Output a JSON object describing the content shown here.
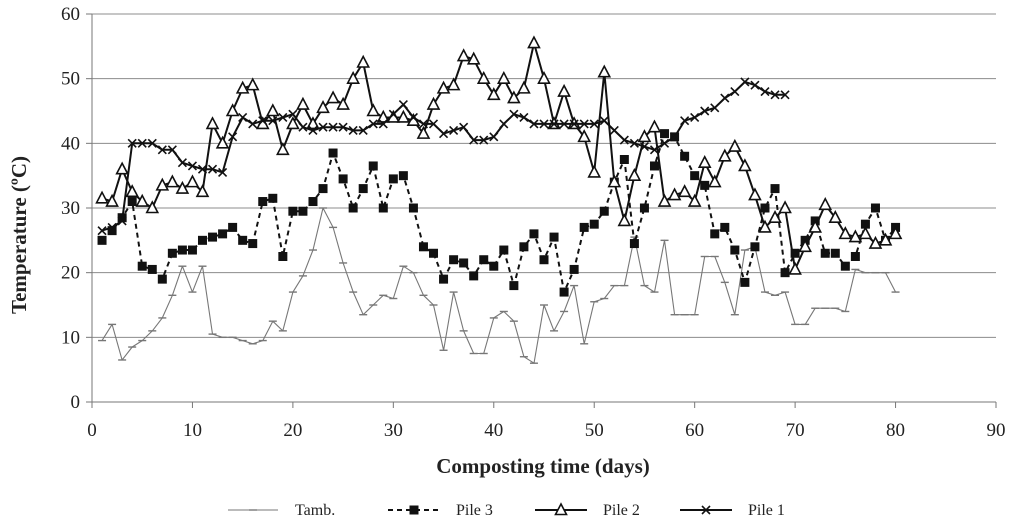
{
  "chart_data": {
    "type": "line",
    "title": "",
    "xlabel": "Composting time (days)",
    "ylabel": "Temperature (ºC)",
    "xlim": [
      0,
      90
    ],
    "ylim": [
      0,
      60
    ],
    "xticks": [
      0,
      10,
      20,
      30,
      40,
      50,
      60,
      70,
      80,
      90
    ],
    "yticks": [
      0,
      10,
      20,
      30,
      40,
      50,
      60
    ],
    "grid": "horizontal",
    "legend_position": "bottom",
    "series": [
      {
        "name": "Tamb.",
        "line_style": "solid-thin",
        "marker": "dash",
        "color": "#777777",
        "x": [
          1,
          2,
          3,
          4,
          5,
          6,
          7,
          8,
          9,
          10,
          11,
          12,
          13,
          14,
          15,
          16,
          17,
          18,
          19,
          20,
          21,
          22,
          23,
          24,
          25,
          26,
          27,
          28,
          29,
          30,
          31,
          32,
          33,
          34,
          35,
          36,
          37,
          38,
          39,
          40,
          41,
          42,
          43,
          44,
          45,
          46,
          47,
          48,
          49,
          50,
          51,
          52,
          53,
          54,
          55,
          56,
          57,
          58,
          59,
          60,
          61,
          62,
          63,
          64,
          65,
          66,
          67,
          68,
          69,
          70,
          71,
          72,
          73,
          74,
          75,
          76,
          77,
          78,
          79,
          80
        ],
        "y": [
          9.5,
          12,
          6.5,
          8.5,
          9.5,
          11,
          13,
          16.5,
          21,
          17,
          21,
          10.5,
          10,
          10,
          9.5,
          9,
          9.5,
          12.5,
          11,
          17,
          19.5,
          23.5,
          30,
          27,
          21.5,
          17,
          13.5,
          15,
          16.5,
          16,
          21,
          20,
          16.5,
          15,
          8,
          17,
          11,
          7.5,
          7.5,
          13,
          14,
          12.5,
          7,
          6,
          15,
          11,
          14,
          18,
          9,
          15.5,
          16,
          18,
          18,
          25.5,
          18,
          17,
          25,
          13.5,
          13.5,
          13.5,
          22.5,
          22.5,
          18.5,
          13.5,
          23.5,
          24,
          17,
          16.5,
          17,
          12,
          12,
          14.5,
          14.5,
          14.5,
          14,
          20.5,
          20,
          20,
          20,
          17
        ]
      },
      {
        "name": "Pile 3",
        "line_style": "dashed",
        "marker": "square",
        "color": "#111111",
        "x": [
          1,
          2,
          3,
          4,
          5,
          6,
          7,
          8,
          9,
          10,
          11,
          12,
          13,
          14,
          15,
          16,
          17,
          18,
          19,
          20,
          21,
          22,
          23,
          24,
          25,
          26,
          27,
          28,
          29,
          30,
          31,
          32,
          33,
          34,
          35,
          36,
          37,
          38,
          39,
          40,
          41,
          42,
          43,
          44,
          45,
          46,
          47,
          48,
          49,
          50,
          51,
          52,
          53,
          54,
          55,
          56,
          57,
          58,
          59,
          60,
          61,
          62,
          63,
          64,
          65,
          66,
          67,
          68,
          69,
          70,
          71,
          72,
          73,
          74,
          75,
          76,
          77,
          78,
          79,
          80
        ],
        "y": [
          25,
          26.5,
          28.5,
          31,
          21,
          20.5,
          19,
          23,
          23.5,
          23.5,
          25,
          25.5,
          26,
          27,
          25,
          24.5,
          31,
          31.5,
          22.5,
          29.5,
          29.5,
          31,
          33,
          38.5,
          34.5,
          30,
          33,
          36.5,
          30,
          34.5,
          35,
          30,
          24,
          23,
          19,
          22,
          21.5,
          19.5,
          22,
          21,
          23.5,
          18,
          24,
          26,
          22,
          25.5,
          17,
          20.5,
          27,
          27.5,
          29.5,
          34,
          37.5,
          24.5,
          30,
          36.5,
          41.5,
          41,
          38,
          35,
          33.5,
          26,
          27,
          23.5,
          18.5,
          24,
          30,
          33,
          20,
          23,
          25,
          28,
          23,
          23,
          21,
          22.5,
          27.5,
          30,
          25,
          27
        ]
      },
      {
        "name": "Pile 2",
        "line_style": "solid",
        "marker": "triangle",
        "color": "#111111",
        "x": [
          1,
          2,
          3,
          4,
          5,
          6,
          7,
          8,
          9,
          10,
          11,
          12,
          13,
          14,
          15,
          16,
          17,
          18,
          19,
          20,
          21,
          22,
          23,
          24,
          25,
          26,
          27,
          28,
          29,
          30,
          31,
          32,
          33,
          34,
          35,
          36,
          37,
          38,
          39,
          40,
          41,
          42,
          43,
          44,
          45,
          46,
          47,
          48,
          49,
          50,
          51,
          52,
          53,
          54,
          55,
          56,
          57,
          58,
          59,
          60,
          61,
          62,
          63,
          64,
          65,
          66,
          67,
          68,
          69,
          70,
          71,
          72,
          73,
          74,
          75,
          76,
          77,
          78,
          79,
          80
        ],
        "y": [
          31.5,
          31,
          36,
          32.5,
          31,
          30,
          33.5,
          34,
          33,
          34,
          32.5,
          43,
          40,
          45,
          48.5,
          49,
          43,
          45,
          39,
          43,
          46,
          43,
          45.5,
          47,
          46,
          50,
          52.5,
          45,
          44,
          44,
          44,
          43.5,
          41.5,
          46,
          48.5,
          49,
          53.5,
          53,
          50,
          47.5,
          50,
          47,
          48.5,
          55.5,
          50,
          43,
          48,
          43,
          41,
          35.5,
          51,
          34,
          28,
          35,
          41,
          42.5,
          31,
          32,
          32.5,
          31,
          37,
          34,
          38,
          39.5,
          36.5,
          32,
          27,
          28.5,
          30,
          20.5,
          24,
          27,
          30.5,
          28.5,
          26,
          25.5,
          26,
          24.5,
          25,
          26
        ]
      },
      {
        "name": "Pile 1",
        "line_style": "solid",
        "marker": "x",
        "color": "#111111",
        "x": [
          1,
          2,
          3,
          4,
          5,
          6,
          7,
          8,
          9,
          10,
          11,
          12,
          13,
          14,
          15,
          16,
          17,
          18,
          19,
          20,
          21,
          22,
          23,
          24,
          25,
          26,
          27,
          28,
          29,
          30,
          31,
          32,
          33,
          34,
          35,
          36,
          37,
          38,
          39,
          40,
          41,
          42,
          43,
          44,
          45,
          46,
          47,
          48,
          49,
          50,
          51,
          52,
          53,
          54,
          55,
          56,
          57,
          58,
          59,
          60,
          61,
          62,
          63,
          64,
          65,
          66,
          67,
          68,
          69
        ],
        "y": [
          26.5,
          27,
          28,
          40,
          40,
          40,
          39,
          39,
          37,
          36.5,
          36,
          36,
          35.5,
          41,
          44,
          43,
          43.5,
          43.5,
          44,
          44.5,
          42.5,
          42,
          42.5,
          42.5,
          42.5,
          42,
          42,
          43,
          43,
          44.5,
          46,
          44,
          43,
          43,
          41.5,
          42,
          42.5,
          40.5,
          40.5,
          41,
          43,
          44.5,
          44,
          43,
          43,
          43,
          43,
          43,
          43,
          43,
          43.5,
          42,
          40.5,
          40,
          39.5,
          39,
          40,
          41,
          43.5,
          44,
          45,
          45.5,
          47,
          48,
          49.5,
          49,
          48,
          47.5,
          47.5
        ]
      }
    ]
  }
}
